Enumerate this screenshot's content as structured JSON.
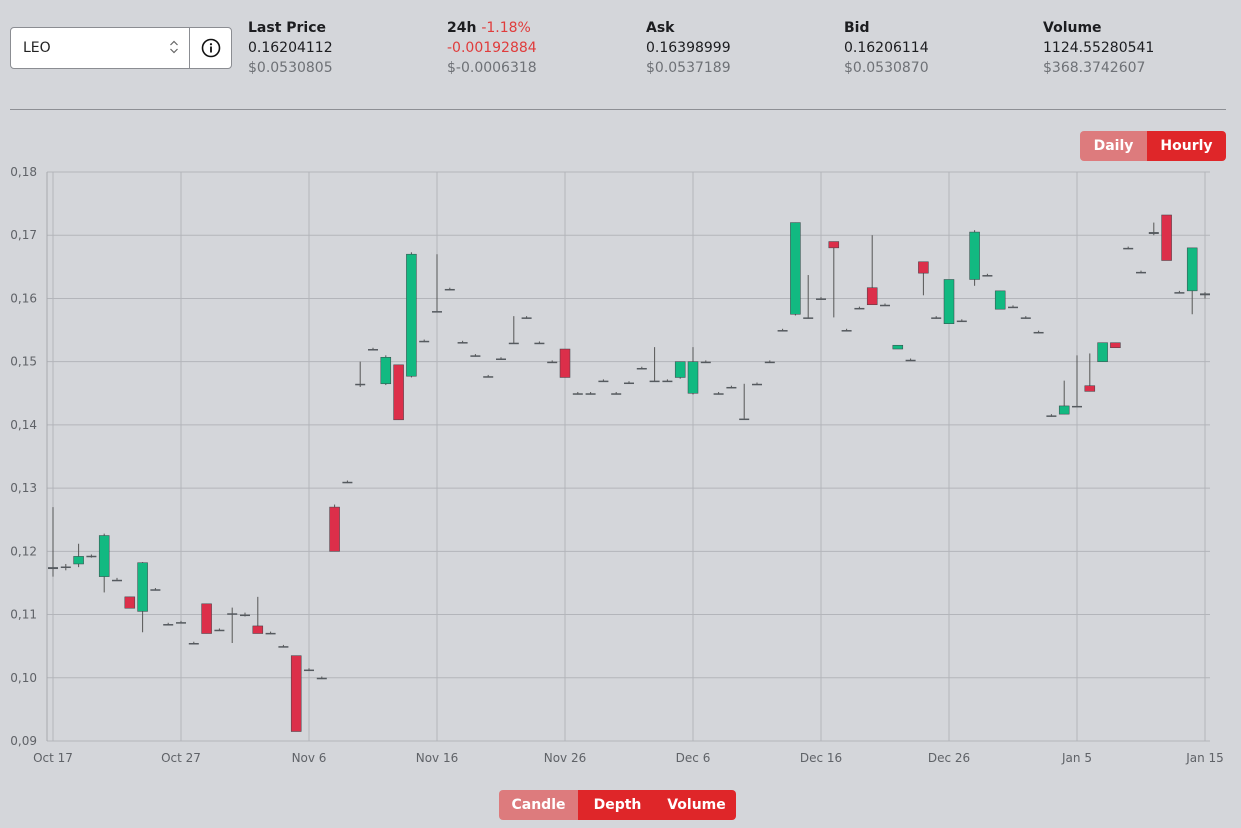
{
  "pair_selector": {
    "value": "LEO",
    "arrows_icon": "up-down-chevron-icon",
    "info_icon": "info-circle-icon"
  },
  "stats": {
    "last_price": {
      "label": "Last Price",
      "value": "0.16204112",
      "usd": "$0.0530805"
    },
    "change_24h": {
      "label": "24h",
      "percent": "-1.18%",
      "value": "-0.00192884",
      "usd": "$-0.0006318"
    },
    "ask": {
      "label": "Ask",
      "value": "0.16398999",
      "usd": "$0.0537189"
    },
    "bid": {
      "label": "Bid",
      "value": "0.16206114",
      "usd": "$0.0530870"
    },
    "volume": {
      "label": "Volume",
      "value": "1124.55280541",
      "usd": "$368.3742607"
    }
  },
  "interval_toggle": {
    "daily": "Daily",
    "hourly": "Hourly",
    "selected": "Hourly"
  },
  "view_toggle": {
    "candle": "Candle",
    "depth": "Depth",
    "volume": "Volume",
    "selected": [
      "Depth",
      "Volume"
    ]
  },
  "colors": {
    "up": "#12b981",
    "down": "#dc2f4a",
    "wick": "#555555",
    "accent": "#df2629",
    "accent_inactive": "#dd7b7d"
  },
  "chart_data": {
    "type": "candlestick",
    "x_ticks": [
      "Oct 17",
      "Oct 27",
      "Nov 6",
      "Nov 16",
      "Nov 26",
      "Dec 6",
      "Dec 16",
      "Dec 26",
      "Jan 5",
      "Jan 15"
    ],
    "y_ticks": [
      "0,09",
      "0,10",
      "0,11",
      "0,12",
      "0,13",
      "0,14",
      "0,15",
      "0,16",
      "0,17",
      "0,18"
    ],
    "ylim": [
      0.09,
      0.18
    ],
    "grid": true,
    "x_start": "Oct 17",
    "candles": [
      {
        "d": 0,
        "o": 0.1172,
        "h": 0.127,
        "l": 0.116,
        "c": 0.1175
      },
      {
        "d": 1,
        "o": 0.1175,
        "h": 0.118,
        "l": 0.117,
        "c": 0.1176
      },
      {
        "d": 2,
        "o": 0.118,
        "h": 0.1212,
        "l": 0.1175,
        "c": 0.1192
      },
      {
        "d": 3,
        "o": 0.1192,
        "h": 0.1195,
        "l": 0.119,
        "c": 0.1193
      },
      {
        "d": 4,
        "o": 0.116,
        "h": 0.1228,
        "l": 0.1135,
        "c": 0.1225
      },
      {
        "d": 5,
        "o": 0.1155,
        "h": 0.1158,
        "l": 0.1153,
        "c": 0.1155
      },
      {
        "d": 6,
        "o": 0.1128,
        "h": 0.1128,
        "l": 0.111,
        "c": 0.111
      },
      {
        "d": 7,
        "o": 0.1105,
        "h": 0.1183,
        "l": 0.1072,
        "c": 0.1182
      },
      {
        "d": 8,
        "o": 0.114,
        "h": 0.1142,
        "l": 0.1138,
        "c": 0.114
      },
      {
        "d": 9,
        "o": 0.1085,
        "h": 0.1087,
        "l": 0.1083,
        "c": 0.1085
      },
      {
        "d": 10,
        "o": 0.1088,
        "h": 0.109,
        "l": 0.1086,
        "c": 0.1088
      },
      {
        "d": 11,
        "o": 0.1055,
        "h": 0.1057,
        "l": 0.1053,
        "c": 0.1055
      },
      {
        "d": 12,
        "o": 0.1117,
        "h": 0.1117,
        "l": 0.107,
        "c": 0.107
      },
      {
        "d": 13,
        "o": 0.1076,
        "h": 0.1078,
        "l": 0.1074,
        "c": 0.1076
      },
      {
        "d": 14,
        "o": 0.11,
        "h": 0.1111,
        "l": 0.1055,
        "c": 0.1102
      },
      {
        "d": 15,
        "o": 0.11,
        "h": 0.1103,
        "l": 0.1097,
        "c": 0.11
      },
      {
        "d": 16,
        "o": 0.1082,
        "h": 0.1128,
        "l": 0.107,
        "c": 0.107
      },
      {
        "d": 17,
        "o": 0.1071,
        "h": 0.1073,
        "l": 0.1069,
        "c": 0.1071
      },
      {
        "d": 18,
        "o": 0.105,
        "h": 0.1052,
        "l": 0.1048,
        "c": 0.105
      },
      {
        "d": 19,
        "o": 0.1035,
        "h": 0.1035,
        "l": 0.0915,
        "c": 0.0915
      },
      {
        "d": 20,
        "o": 0.1013,
        "h": 0.1015,
        "l": 0.1011,
        "c": 0.1013
      },
      {
        "d": 21,
        "o": 0.1,
        "h": 0.1002,
        "l": 0.0998,
        "c": 0.1
      },
      {
        "d": 22,
        "o": 0.127,
        "h": 0.1274,
        "l": 0.12,
        "c": 0.12
      },
      {
        "d": 23,
        "o": 0.131,
        "h": 0.1312,
        "l": 0.1308,
        "c": 0.131
      },
      {
        "d": 24,
        "o": 0.1465,
        "h": 0.15,
        "l": 0.146,
        "c": 0.1465
      },
      {
        "d": 25,
        "o": 0.152,
        "h": 0.1522,
        "l": 0.1518,
        "c": 0.152
      },
      {
        "d": 26,
        "o": 0.1465,
        "h": 0.151,
        "l": 0.1463,
        "c": 0.1507
      },
      {
        "d": 27,
        "o": 0.1495,
        "h": 0.1495,
        "l": 0.1408,
        "c": 0.1408
      },
      {
        "d": 28,
        "o": 0.1477,
        "h": 0.1673,
        "l": 0.1475,
        "c": 0.167
      },
      {
        "d": 29,
        "o": 0.1533,
        "h": 0.1535,
        "l": 0.1531,
        "c": 0.1533
      },
      {
        "d": 30,
        "o": 0.158,
        "h": 0.167,
        "l": 0.1578,
        "c": 0.158
      },
      {
        "d": 31,
        "o": 0.1615,
        "h": 0.1617,
        "l": 0.1613,
        "c": 0.1615
      },
      {
        "d": 32,
        "o": 0.1531,
        "h": 0.1533,
        "l": 0.1529,
        "c": 0.1531
      },
      {
        "d": 33,
        "o": 0.151,
        "h": 0.1512,
        "l": 0.1508,
        "c": 0.151
      },
      {
        "d": 34,
        "o": 0.1477,
        "h": 0.1479,
        "l": 0.1475,
        "c": 0.1477
      },
      {
        "d": 35,
        "o": 0.1505,
        "h": 0.1507,
        "l": 0.1503,
        "c": 0.1505
      },
      {
        "d": 36,
        "o": 0.153,
        "h": 0.1572,
        "l": 0.1528,
        "c": 0.153
      },
      {
        "d": 37,
        "o": 0.157,
        "h": 0.1572,
        "l": 0.1568,
        "c": 0.157
      },
      {
        "d": 38,
        "o": 0.153,
        "h": 0.1532,
        "l": 0.1528,
        "c": 0.153
      },
      {
        "d": 39,
        "o": 0.15,
        "h": 0.1502,
        "l": 0.1498,
        "c": 0.15
      },
      {
        "d": 40,
        "o": 0.152,
        "h": 0.152,
        "l": 0.1475,
        "c": 0.1475
      },
      {
        "d": 41,
        "o": 0.145,
        "h": 0.1452,
        "l": 0.1448,
        "c": 0.145
      },
      {
        "d": 42,
        "o": 0.145,
        "h": 0.1452,
        "l": 0.1448,
        "c": 0.145
      },
      {
        "d": 43,
        "o": 0.147,
        "h": 0.1472,
        "l": 0.1468,
        "c": 0.147
      },
      {
        "d": 44,
        "o": 0.145,
        "h": 0.1452,
        "l": 0.1448,
        "c": 0.145
      },
      {
        "d": 45,
        "o": 0.1467,
        "h": 0.1469,
        "l": 0.1465,
        "c": 0.1467
      },
      {
        "d": 46,
        "o": 0.149,
        "h": 0.1492,
        "l": 0.1488,
        "c": 0.149
      },
      {
        "d": 47,
        "o": 0.147,
        "h": 0.1523,
        "l": 0.1468,
        "c": 0.147
      },
      {
        "d": 48,
        "o": 0.147,
        "h": 0.1472,
        "l": 0.1468,
        "c": 0.147
      },
      {
        "d": 49,
        "o": 0.1475,
        "h": 0.15,
        "l": 0.1473,
        "c": 0.15
      },
      {
        "d": 50,
        "o": 0.145,
        "h": 0.1523,
        "l": 0.1448,
        "c": 0.15
      },
      {
        "d": 51,
        "o": 0.15,
        "h": 0.1502,
        "l": 0.1498,
        "c": 0.15
      },
      {
        "d": 52,
        "o": 0.145,
        "h": 0.1452,
        "l": 0.1448,
        "c": 0.145
      },
      {
        "d": 53,
        "o": 0.146,
        "h": 0.1462,
        "l": 0.1458,
        "c": 0.146
      },
      {
        "d": 54,
        "o": 0.141,
        "h": 0.1465,
        "l": 0.141,
        "c": 0.141
      },
      {
        "d": 55,
        "o": 0.1465,
        "h": 0.1467,
        "l": 0.1463,
        "c": 0.1465
      },
      {
        "d": 56,
        "o": 0.15,
        "h": 0.1502,
        "l": 0.1498,
        "c": 0.15
      },
      {
        "d": 57,
        "o": 0.155,
        "h": 0.1552,
        "l": 0.1548,
        "c": 0.155
      },
      {
        "d": 58,
        "o": 0.1575,
        "h": 0.172,
        "l": 0.1573,
        "c": 0.172
      },
      {
        "d": 59,
        "o": 0.157,
        "h": 0.1637,
        "l": 0.1568,
        "c": 0.157
      },
      {
        "d": 60,
        "o": 0.16,
        "h": 0.1602,
        "l": 0.1598,
        "c": 0.16
      },
      {
        "d": 61,
        "o": 0.169,
        "h": 0.169,
        "l": 0.157,
        "c": 0.168
      },
      {
        "d": 62,
        "o": 0.155,
        "h": 0.1552,
        "l": 0.1548,
        "c": 0.155
      },
      {
        "d": 63,
        "o": 0.1585,
        "h": 0.1587,
        "l": 0.1583,
        "c": 0.1585
      },
      {
        "d": 64,
        "o": 0.1617,
        "h": 0.17,
        "l": 0.159,
        "c": 0.159
      },
      {
        "d": 65,
        "o": 0.159,
        "h": 0.1592,
        "l": 0.1588,
        "c": 0.159
      },
      {
        "d": 66,
        "o": 0.152,
        "h": 0.1526,
        "l": 0.152,
        "c": 0.1526
      },
      {
        "d": 67,
        "o": 0.1503,
        "h": 0.1505,
        "l": 0.1501,
        "c": 0.1503
      },
      {
        "d": 68,
        "o": 0.1658,
        "h": 0.1658,
        "l": 0.1605,
        "c": 0.164
      },
      {
        "d": 69,
        "o": 0.157,
        "h": 0.1572,
        "l": 0.1568,
        "c": 0.157
      },
      {
        "d": 70,
        "o": 0.156,
        "h": 0.163,
        "l": 0.156,
        "c": 0.163
      },
      {
        "d": 71,
        "o": 0.1565,
        "h": 0.1567,
        "l": 0.1563,
        "c": 0.1565
      },
      {
        "d": 72,
        "o": 0.163,
        "h": 0.1708,
        "l": 0.162,
        "c": 0.1705
      },
      {
        "d": 73,
        "o": 0.1637,
        "h": 0.1639,
        "l": 0.1635,
        "c": 0.1637
      },
      {
        "d": 74,
        "o": 0.1583,
        "h": 0.1612,
        "l": 0.1583,
        "c": 0.1612
      },
      {
        "d": 75,
        "o": 0.1587,
        "h": 0.1589,
        "l": 0.1585,
        "c": 0.1587
      },
      {
        "d": 76,
        "o": 0.157,
        "h": 0.1572,
        "l": 0.1568,
        "c": 0.157
      },
      {
        "d": 77,
        "o": 0.1547,
        "h": 0.1549,
        "l": 0.1545,
        "c": 0.1547
      },
      {
        "d": 78,
        "o": 0.1415,
        "h": 0.1417,
        "l": 0.1413,
        "c": 0.1415
      },
      {
        "d": 79,
        "o": 0.1417,
        "h": 0.147,
        "l": 0.1417,
        "c": 0.143
      },
      {
        "d": 80,
        "o": 0.143,
        "h": 0.151,
        "l": 0.1428,
        "c": 0.143
      },
      {
        "d": 81,
        "o": 0.1462,
        "h": 0.1513,
        "l": 0.1453,
        "c": 0.1453
      },
      {
        "d": 82,
        "o": 0.15,
        "h": 0.153,
        "l": 0.15,
        "c": 0.153
      },
      {
        "d": 83,
        "o": 0.153,
        "h": 0.153,
        "l": 0.1522,
        "c": 0.1522
      },
      {
        "d": 84,
        "o": 0.168,
        "h": 0.1682,
        "l": 0.1678,
        "c": 0.168
      },
      {
        "d": 85,
        "o": 0.1642,
        "h": 0.1644,
        "l": 0.164,
        "c": 0.1642
      },
      {
        "d": 86,
        "o": 0.1702,
        "h": 0.172,
        "l": 0.17,
        "c": 0.1705
      },
      {
        "d": 87,
        "o": 0.1732,
        "h": 0.1732,
        "l": 0.166,
        "c": 0.166
      },
      {
        "d": 88,
        "o": 0.161,
        "h": 0.1612,
        "l": 0.1608,
        "c": 0.161
      },
      {
        "d": 89,
        "o": 0.1612,
        "h": 0.168,
        "l": 0.1575,
        "c": 0.168
      },
      {
        "d": 90,
        "o": 0.1608,
        "h": 0.161,
        "l": 0.16,
        "c": 0.1605
      }
    ]
  }
}
